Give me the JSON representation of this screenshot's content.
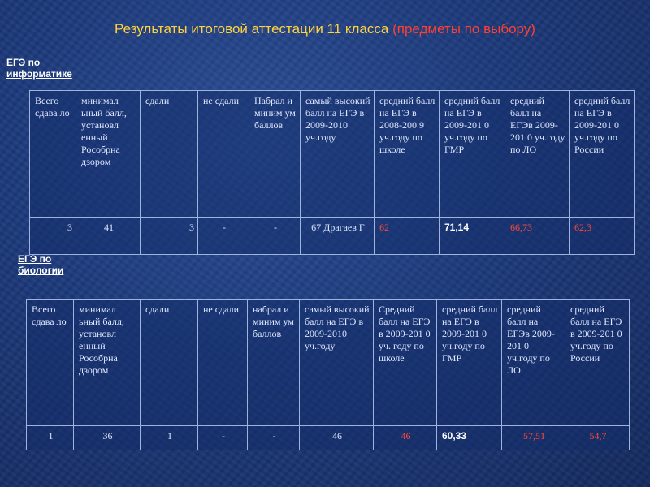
{
  "title": {
    "main": "Результаты итоговой аттестации 11 класса ",
    "sub": "(предметы по выбору)"
  },
  "sections": [
    {
      "label_line1": "ЕГЭ по",
      "label_line2": "информатике",
      "headers": [
        "Всего сдава ло",
        "минимал ьный балл, установл енный Рособрна дзором",
        "сдали",
        "не сдали",
        "Набрал и миним ум баллов",
        "самый высокий балл на ЕГЭ в 2009-2010 уч.году",
        "средний балл на ЕГЭ в 2008-200 9 уч.году по школе",
        "средний балл на ЕГЭ в 2009-201 0 уч.году по ГМР",
        "средний балл на ЕГЭв 2009-201 0 уч.году по ЛО",
        "средний балл на ЕГЭ в 2009-201 0 уч.году по России"
      ],
      "values": [
        "3",
        "41",
        "3",
        "-",
        "-",
        "67 Драгаев Г",
        "62",
        "71,14",
        "66,73",
        "62,3"
      ]
    },
    {
      "label_line1": "ЕГЭ по",
      "label_line2": "биологии",
      "headers": [
        "Всего сдава ло",
        "минимал ьный балл, установл енный Рособрна дзором",
        "сдали",
        "не сдали",
        "набрал и миним ум баллов",
        "самый высокий балл на ЕГЭ в 2009-2010 уч.году",
        "Средний балл на ЕГЭ в 2009-201 0 уч. году по школе",
        "средний балл на ЕГЭ в 2009-201 0 уч.году по ГМР",
        "средний балл на ЕГЭв 2009-201 0 уч.году по ЛО",
        "средний балл на ЕГЭ в 2009-201 0 уч.году по России"
      ],
      "values": [
        "1",
        "36",
        "1",
        "-",
        "-",
        "46",
        "46",
        "60,33",
        "57,51",
        "54,7"
      ]
    }
  ],
  "colors": {
    "background": "#1d3a7c",
    "title": "#ffd23c",
    "title_sub": "#ff4030",
    "highlight": "#ff4a3a"
  }
}
